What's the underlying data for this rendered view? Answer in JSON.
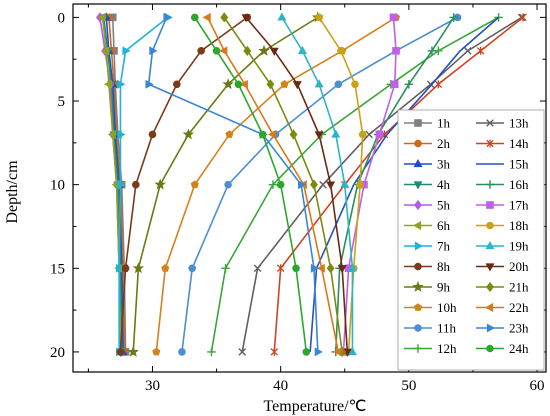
{
  "chart_data": {
    "type": "line",
    "xlabel": "Temperature/℃",
    "ylabel": "Depth/cm",
    "xlim": [
      23.8,
      60.7
    ],
    "ylim": [
      21.2,
      -0.8
    ],
    "xticks": [
      30,
      40,
      50,
      60
    ],
    "yticks": [
      0,
      5,
      10,
      15,
      20
    ],
    "y_inverted": true,
    "x_axis_position": "bottom",
    "grid": false,
    "legend_position": "lower right inside, two columns",
    "depths": [
      0,
      2,
      4,
      7,
      10,
      15,
      20
    ],
    "series": [
      {
        "name": "1h",
        "color": "#808080",
        "marker": "square",
        "values": [
          26.9,
          27.0,
          27.1,
          27.3,
          27.6,
          27.8,
          27.9
        ]
      },
      {
        "name": "2h",
        "color": "#d4661c",
        "marker": "circle",
        "values": [
          26.6,
          26.8,
          27.0,
          27.2,
          27.5,
          27.7,
          27.8
        ]
      },
      {
        "name": "3h",
        "color": "#1a4fcf",
        "marker": "triangle",
        "values": [
          26.4,
          26.6,
          26.9,
          27.1,
          27.4,
          27.6,
          27.7
        ]
      },
      {
        "name": "4h",
        "color": "#1e8c73",
        "marker": "tri-down",
        "values": [
          26.2,
          26.5,
          26.8,
          27.0,
          27.3,
          27.5,
          27.6
        ]
      },
      {
        "name": "5h",
        "color": "#b45ae8",
        "marker": "diamond",
        "values": [
          25.9,
          26.3,
          26.7,
          26.9,
          27.2,
          27.4,
          27.5
        ]
      },
      {
        "name": "6h",
        "color": "#8fa31c",
        "marker": "tri-left",
        "values": [
          26.1,
          26.4,
          26.6,
          26.9,
          27.2,
          27.4,
          27.5
        ]
      },
      {
        "name": "7h",
        "color": "#20b4d8",
        "marker": "tri-right",
        "values": [
          31.2,
          27.9,
          27.5,
          27.5,
          27.5,
          27.4,
          27.4
        ]
      },
      {
        "name": "8h",
        "color": "#7a3b1a",
        "marker": "circle",
        "values": [
          37.4,
          33.8,
          31.9,
          30.0,
          28.7,
          27.9,
          27.5
        ]
      },
      {
        "name": "9h",
        "color": "#6b7a14",
        "marker": "star",
        "values": [
          42.9,
          38.7,
          35.9,
          32.8,
          30.6,
          28.9,
          28.5
        ]
      },
      {
        "name": "10h",
        "color": "#d4821c",
        "marker": "pentagon",
        "values": [
          49.0,
          44.8,
          40.3,
          36.0,
          33.3,
          31.0,
          30.3
        ]
      },
      {
        "name": "11h",
        "color": "#4a8fd0",
        "marker": "circle",
        "values": [
          53.8,
          49.0,
          44.5,
          39.6,
          35.9,
          33.1,
          32.3
        ]
      },
      {
        "name": "12h",
        "color": "#3aa63a",
        "marker": "plus",
        "values": [
          57.0,
          52.3,
          48.6,
          43.2,
          39.4,
          35.7,
          34.6
        ]
      },
      {
        "name": "13h",
        "color": "#606060",
        "marker": "cross",
        "values": [
          58.8,
          54.6,
          51.7,
          46.9,
          43.3,
          38.2,
          37.0
        ]
      },
      {
        "name": "14h",
        "color": "#cc4424",
        "marker": "x-star",
        "values": [
          58.9,
          55.6,
          52.3,
          48.1,
          45.0,
          40.0,
          39.5
        ]
      },
      {
        "name": "15h",
        "color": "#2452c4",
        "marker": "none",
        "values": [
          57.0,
          54.0,
          51.8,
          48.3,
          45.7,
          42.8,
          42.3
        ]
      },
      {
        "name": "16h",
        "color": "#2a8f58",
        "marker": "plus",
        "values": [
          53.5,
          51.8,
          50.0,
          47.6,
          46.0,
          44.6,
          44.3
        ]
      },
      {
        "name": "17h",
        "color": "#c060e8",
        "marker": "square",
        "values": [
          48.8,
          49.0,
          48.9,
          47.7,
          46.5,
          45.3,
          44.9
        ]
      },
      {
        "name": "18h",
        "color": "#c9a218",
        "marker": "circle",
        "values": [
          43.0,
          44.7,
          45.8,
          46.4,
          46.2,
          45.7,
          45.3
        ]
      },
      {
        "name": "19h",
        "color": "#2cb4c8",
        "marker": "triangle",
        "values": [
          40.1,
          41.7,
          43.0,
          44.3,
          45.0,
          45.6,
          45.6
        ]
      },
      {
        "name": "20h",
        "color": "#6b2a12",
        "marker": "tri-down",
        "values": [
          37.3,
          39.5,
          41.3,
          43.0,
          43.9,
          44.8,
          45.2
        ]
      },
      {
        "name": "21h",
        "color": "#7d8a10",
        "marker": "diamond",
        "values": [
          35.6,
          37.4,
          39.2,
          41.0,
          42.6,
          43.9,
          44.8
        ]
      },
      {
        "name": "22h",
        "color": "#d87a1c",
        "marker": "tri-left",
        "values": [
          34.3,
          35.6,
          37.2,
          39.4,
          41.8,
          43.2,
          44.5
        ]
      },
      {
        "name": "23h",
        "color": "#3a86d4",
        "marker": "tri-right",
        "values": [
          31.1,
          30.0,
          29.7,
          38.6,
          41.6,
          42.6,
          42.9
        ]
      },
      {
        "name": "24h",
        "color": "#2ba82b",
        "marker": "circle",
        "values": [
          33.3,
          35.0,
          36.7,
          38.6,
          40.0,
          41.2,
          42.0
        ]
      }
    ]
  }
}
